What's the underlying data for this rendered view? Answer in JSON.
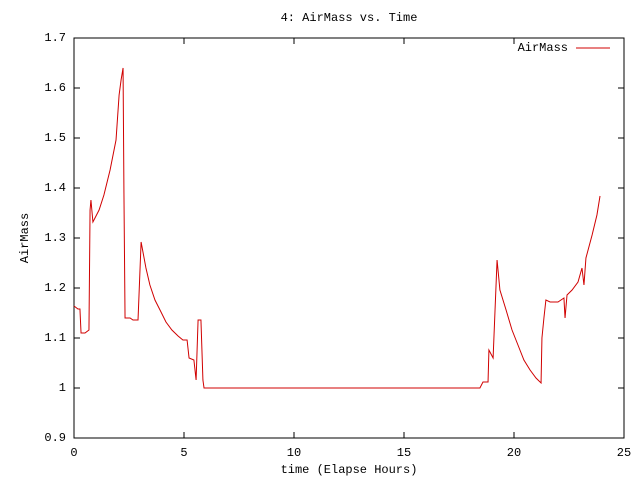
{
  "chart_data": {
    "type": "line",
    "title": "4: AirMass vs. Time",
    "x_label": "time (Elapse Hours)",
    "y_label": "AirMass",
    "x": [
      0,
      0.18,
      0.27,
      0.32,
      0.5,
      0.68,
      0.73,
      0.77,
      0.86,
      1.14,
      1.36,
      1.64,
      1.91,
      2.05,
      2.14,
      2.23,
      2.27,
      2.32,
      2.55,
      2.68,
      2.91,
      3.05,
      3.27,
      3.45,
      3.68,
      3.91,
      4.18,
      4.45,
      4.73,
      4.95,
      5.14,
      5.23,
      5.45,
      5.55,
      5.64,
      5.77,
      5.86,
      5.91,
      18.45,
      18.59,
      18.82,
      18.86,
      19.05,
      19.23,
      19.36,
      19.64,
      19.91,
      20.18,
      20.45,
      20.73,
      21.0,
      21.23,
      21.27,
      21.36,
      21.45,
      21.64,
      22.0,
      22.27,
      22.32,
      22.41,
      22.64,
      22.91,
      23.09,
      23.18,
      23.27,
      23.55,
      23.77,
      23.91
    ],
    "series": [
      {
        "name": "AirMass",
        "color": "#d00000",
        "values": [
          1.164,
          1.158,
          1.158,
          1.11,
          1.11,
          1.116,
          1.356,
          1.376,
          1.332,
          1.356,
          1.386,
          1.436,
          1.496,
          1.586,
          1.616,
          1.64,
          1.39,
          1.14,
          1.14,
          1.136,
          1.136,
          1.292,
          1.24,
          1.206,
          1.176,
          1.156,
          1.132,
          1.116,
          1.104,
          1.096,
          1.096,
          1.06,
          1.056,
          1.016,
          1.136,
          1.136,
          1.016,
          1.0,
          1.0,
          1.012,
          1.012,
          1.076,
          1.06,
          1.256,
          1.196,
          1.156,
          1.116,
          1.086,
          1.056,
          1.036,
          1.02,
          1.01,
          1.1,
          1.14,
          1.176,
          1.172,
          1.172,
          1.18,
          1.14,
          1.186,
          1.196,
          1.212,
          1.24,
          1.206,
          1.26,
          1.306,
          1.346,
          1.384
        ]
      }
    ],
    "xlim": [
      0,
      25
    ],
    "xticks": [
      0,
      5,
      10,
      15,
      20,
      25
    ],
    "ylim": [
      0.9,
      1.7
    ],
    "yticks": [
      0.9,
      1,
      1.1,
      1.2,
      1.3,
      1.4,
      1.5,
      1.6,
      1.7
    ],
    "grid": false,
    "legend": "top-right"
  }
}
